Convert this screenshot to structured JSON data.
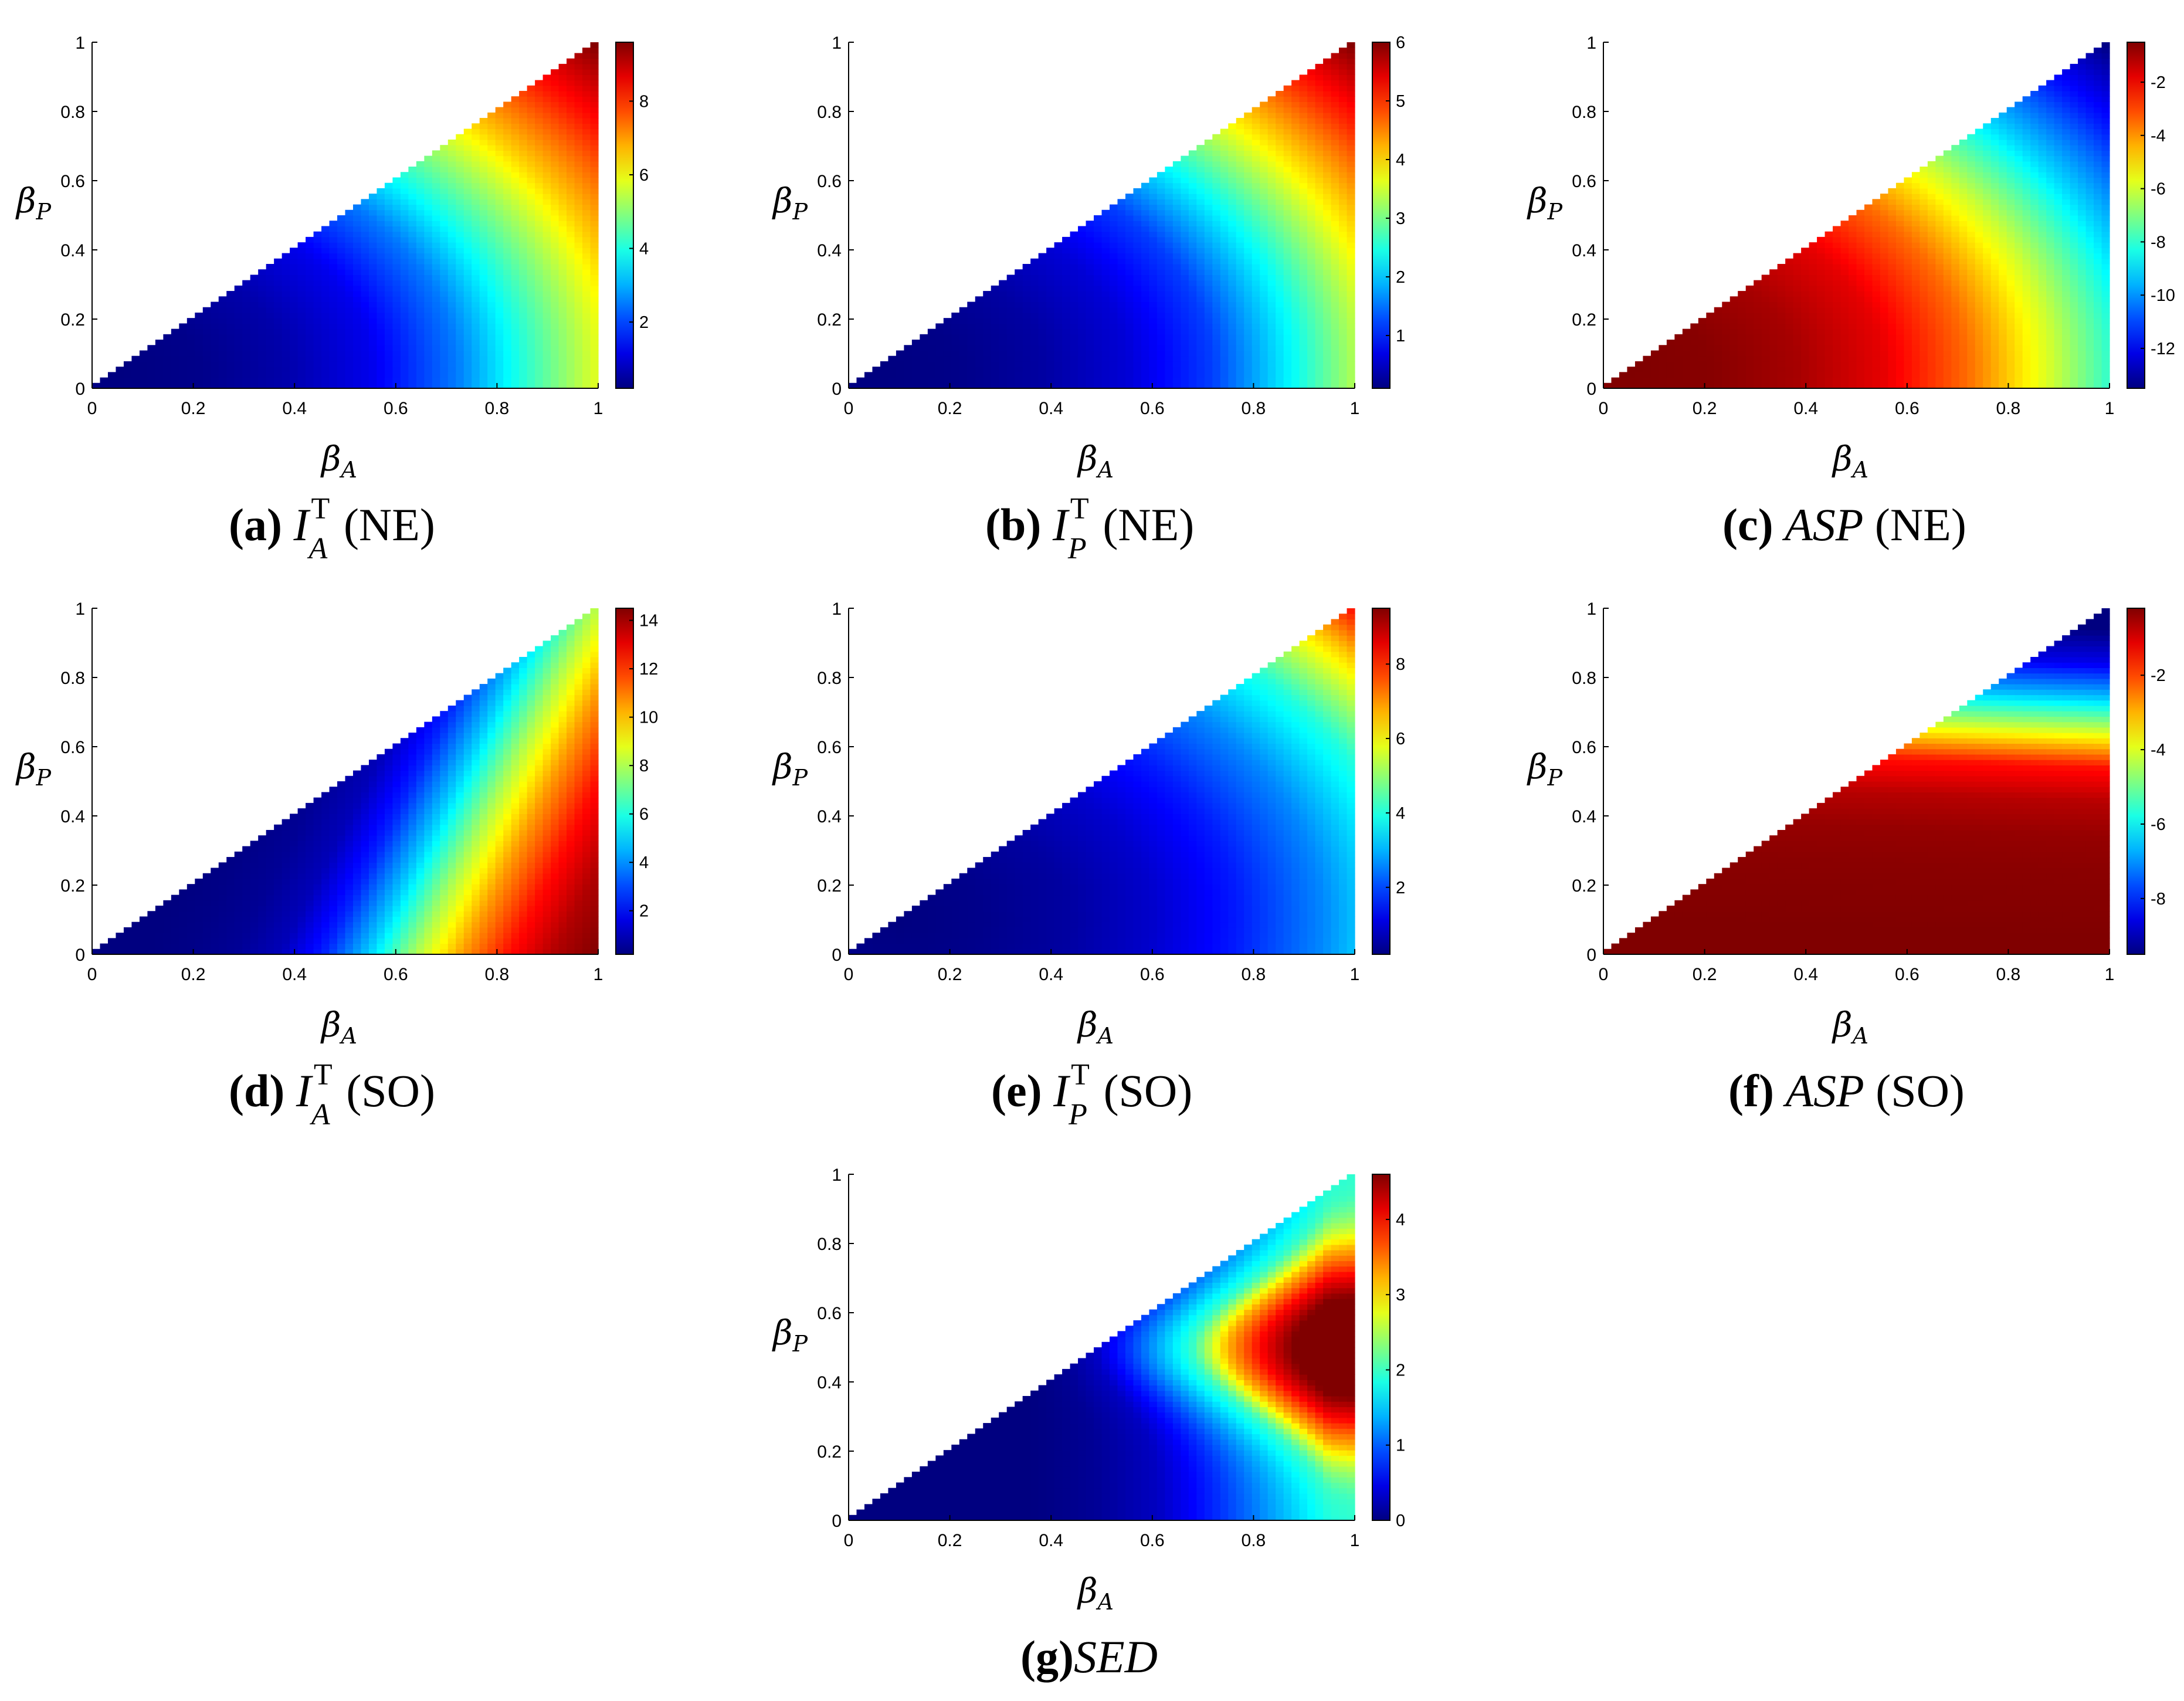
{
  "chart_data": [
    {
      "id": "a",
      "type": "heatmap",
      "caption": {
        "tag": "(a)",
        "var": "I",
        "sup": "T",
        "sub": "A",
        "rest": "(NE)"
      },
      "xlabel": {
        "base": "β",
        "sub": "A"
      },
      "ylabel": {
        "base": "β",
        "sub": "P"
      },
      "xlim": [
        0,
        1
      ],
      "ylim": [
        0,
        1
      ],
      "xticks": [
        "0",
        "0.2",
        "0.4",
        "0.6",
        "0.8",
        "1"
      ],
      "yticks": [
        "0",
        "0.2",
        "0.4",
        "0.6",
        "0.8",
        "1"
      ],
      "domain": "βP ≤ βA",
      "colorbar": {
        "range": [
          0.2,
          9.6
        ],
        "ticks": [
          2,
          4,
          6,
          8
        ]
      },
      "field": {
        "kind": "radial",
        "center": [
          0.05,
          0.05
        ],
        "min_value": 0.2,
        "max_value": 9.6,
        "values": [
          0.2,
          0.3,
          0.6,
          1.2,
          2.5,
          4.5,
          6.5,
          8.2,
          9.6
        ]
      }
    },
    {
      "id": "b",
      "type": "heatmap",
      "caption": {
        "tag": "(b)",
        "var": "I",
        "sup": "T",
        "sub": "P",
        "rest": "(NE)"
      },
      "xlabel": {
        "base": "β",
        "sub": "A"
      },
      "ylabel": {
        "base": "β",
        "sub": "P"
      },
      "xlim": [
        0,
        1
      ],
      "ylim": [
        0,
        1
      ],
      "xticks": [
        "0",
        "0.2",
        "0.4",
        "0.6",
        "0.8",
        "1"
      ],
      "yticks": [
        "0",
        "0.2",
        "0.4",
        "0.6",
        "0.8",
        "1"
      ],
      "domain": "βP ≤ βA",
      "colorbar": {
        "range": [
          0.1,
          6.0
        ],
        "ticks": [
          1,
          2,
          3,
          4,
          5,
          6
        ]
      },
      "field": {
        "kind": "radial",
        "center": [
          0.05,
          0.05
        ],
        "min_value": 0.1,
        "max_value": 6.0,
        "values": [
          0.1,
          0.15,
          0.3,
          0.6,
          1.2,
          2.4,
          3.8,
          5.0,
          6.0
        ]
      }
    },
    {
      "id": "c",
      "type": "heatmap",
      "caption": {
        "tag": "(c)",
        "var": "ASP",
        "sup": "",
        "sub": "",
        "rest": "(NE)"
      },
      "xlabel": {
        "base": "β",
        "sub": "A"
      },
      "ylabel": {
        "base": "β",
        "sub": "P"
      },
      "xlim": [
        0,
        1
      ],
      "ylim": [
        0,
        1
      ],
      "xticks": [
        "0",
        "0.2",
        "0.4",
        "0.6",
        "0.8",
        "1"
      ],
      "yticks": [
        "0",
        "0.2",
        "0.4",
        "0.6",
        "0.8",
        "1"
      ],
      "domain": "βP ≤ βA",
      "colorbar": {
        "range": [
          -13.5,
          -0.5
        ],
        "ticks": [
          -2,
          -4,
          -6,
          -8,
          -10,
          -12
        ]
      },
      "field": {
        "kind": "radial",
        "center": [
          0.05,
          0.05
        ],
        "min_value": -13.5,
        "max_value": -0.5,
        "values": [
          -0.5,
          -0.6,
          -1.0,
          -1.8,
          -3.5,
          -6.0,
          -9.0,
          -11.5,
          -13.5
        ]
      }
    },
    {
      "id": "d",
      "type": "heatmap",
      "caption": {
        "tag": "(d)",
        "var": "I",
        "sup": "T",
        "sub": "A",
        "rest": "(SO)"
      },
      "xlabel": {
        "base": "β",
        "sub": "A"
      },
      "ylabel": {
        "base": "β",
        "sub": "P"
      },
      "xlim": [
        0,
        1
      ],
      "ylim": [
        0,
        1
      ],
      "xticks": [
        "0",
        "0.2",
        "0.4",
        "0.6",
        "0.8",
        "1"
      ],
      "yticks": [
        "0",
        "0.2",
        "0.4",
        "0.6",
        "0.8",
        "1"
      ],
      "domain": "βP ≤ βA",
      "colorbar": {
        "range": [
          0.2,
          14.5
        ],
        "ticks": [
          2,
          4,
          6,
          8,
          10,
          12,
          14
        ]
      },
      "field": {
        "kind": "band",
        "min_value": 0.2,
        "max_value": 14.5,
        "values": [
          0.2,
          0.3,
          0.5,
          1.0,
          2.5,
          5.0,
          8.0,
          10.5,
          12.5,
          13.8,
          14.5
        ]
      }
    },
    {
      "id": "e",
      "type": "heatmap",
      "caption": {
        "tag": "(e)",
        "var": "I",
        "sup": "T",
        "sub": "P",
        "rest": "(SO)"
      },
      "xlabel": {
        "base": "β",
        "sub": "A"
      },
      "ylabel": {
        "base": "β",
        "sub": "P"
      },
      "xlim": [
        0,
        1
      ],
      "ylim": [
        0,
        1
      ],
      "xticks": [
        "0",
        "0.2",
        "0.4",
        "0.6",
        "0.8",
        "1"
      ],
      "yticks": [
        "0",
        "0.2",
        "0.4",
        "0.6",
        "0.8",
        "1"
      ],
      "domain": "βP ≤ βA",
      "colorbar": {
        "range": [
          0.2,
          9.5
        ],
        "ticks": [
          2,
          4,
          6,
          8
        ]
      },
      "field": {
        "kind": "radial",
        "center": [
          0.1,
          0.1
        ],
        "min_value": 0.2,
        "max_value": 9.5,
        "values": [
          0.2,
          0.3,
          0.5,
          0.9,
          1.6,
          2.6,
          4.0,
          6.5,
          9.5
        ]
      }
    },
    {
      "id": "f",
      "type": "heatmap",
      "caption": {
        "tag": "(f)",
        "var": "ASP",
        "sup": "",
        "sub": "",
        "rest": "(SO)"
      },
      "xlabel": {
        "base": "β",
        "sub": "A"
      },
      "ylabel": {
        "base": "β",
        "sub": "P"
      },
      "xlim": [
        0,
        1
      ],
      "ylim": [
        0,
        1
      ],
      "xticks": [
        "0",
        "0.2",
        "0.4",
        "0.6",
        "0.8",
        "1"
      ],
      "yticks": [
        "0",
        "0.2",
        "0.4",
        "0.6",
        "0.8",
        "1"
      ],
      "domain": "βP ≤ βA",
      "colorbar": {
        "range": [
          -9.5,
          -0.2
        ],
        "ticks": [
          -2,
          -4,
          -6,
          -8
        ]
      },
      "field": {
        "kind": "vertical",
        "min_value": -9.5,
        "max_value": -0.2,
        "values": [
          -0.2,
          -0.2,
          -0.25,
          -0.3,
          -0.4,
          -0.7,
          -1.5,
          -4.0,
          -6.5,
          -8.5,
          -9.5
        ]
      }
    },
    {
      "id": "g",
      "type": "heatmap",
      "caption": {
        "tag": "(g)",
        "var": "SED",
        "sup": "",
        "sub": "",
        "rest": ""
      },
      "xlabel": {
        "base": "β",
        "sub": "A"
      },
      "ylabel": {
        "base": "β",
        "sub": "P"
      },
      "xlim": [
        0,
        1
      ],
      "ylim": [
        0,
        1
      ],
      "xticks": [
        "0",
        "0.2",
        "0.4",
        "0.6",
        "0.8",
        "1"
      ],
      "yticks": [
        "0",
        "0.2",
        "0.4",
        "0.6",
        "0.8",
        "1"
      ],
      "domain": "βP ≤ βA",
      "colorbar": {
        "range": [
          0,
          4.6
        ],
        "ticks": [
          0,
          1,
          2,
          3,
          4
        ]
      },
      "field": {
        "kind": "ridge",
        "peak": [
          0.95,
          0.5
        ],
        "min_value": 0,
        "max_value": 4.6,
        "values": [
          0,
          0.1,
          0.3,
          0.8,
          1.4,
          2.0,
          3.2,
          4.0,
          4.6
        ]
      }
    }
  ]
}
